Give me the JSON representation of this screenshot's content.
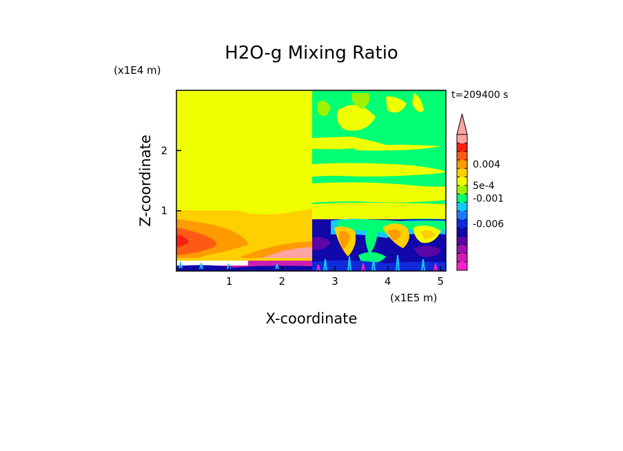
{
  "chart_data": {
    "type": "heatmap",
    "title": "H2O-g Mixing Ratio",
    "xlabel": "X-coordinate",
    "ylabel": "Z-coordinate",
    "x_unit": "(x1E5 m)",
    "y_unit": "(x1E4 m)",
    "time_label": "t=209400 s",
    "xlim": [
      0,
      5.1
    ],
    "ylim": [
      0,
      3.0
    ],
    "x_ticks": [
      1,
      2,
      3,
      4,
      5
    ],
    "x_tick_labels": [
      "1",
      "2",
      "3",
      "4",
      "5"
    ],
    "y_ticks": [
      1,
      2
    ],
    "y_tick_labels": [
      "1",
      "2"
    ],
    "colorbar": {
      "colors": [
        "#ff22cc",
        "#cc1fb2",
        "#9a14aa",
        "#5b06a6",
        "#1008a8",
        "#0f2ad8",
        "#1e78ff",
        "#15c8ff",
        "#00ff73",
        "#9ef200",
        "#f0ff00",
        "#ffd000",
        "#ff9a00",
        "#ff5a14",
        "#ff1e10",
        "#ffa3a3"
      ],
      "extend_top": true,
      "labels": [
        {
          "text": "0.004",
          "value": 0.004
        },
        {
          "text": "5e-4",
          "value": 0.0005
        },
        {
          "text": "-0.001",
          "value": -0.001
        },
        {
          "text": "-0.006",
          "value": -0.006
        }
      ]
    },
    "grid": false,
    "legend": "colorbar-right"
  }
}
